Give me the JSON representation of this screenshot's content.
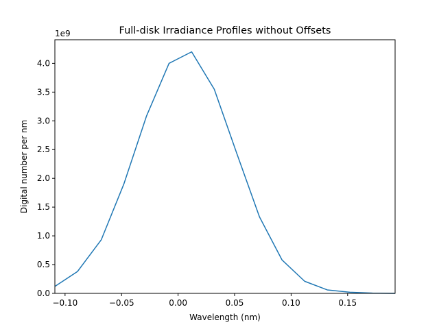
{
  "chart_data": {
    "type": "line",
    "title": "Full-disk Irradiance Profiles without Offsets",
    "xlabel": "Wavelength (nm)",
    "ylabel": "Digital number per nm",
    "y_exponent_label": "1e9",
    "xlim": [
      -0.109,
      0.192
    ],
    "ylim": [
      0,
      4.41
    ],
    "grid": false,
    "x_ticks": [
      -0.1,
      -0.05,
      0.0,
      0.05,
      0.1,
      0.15
    ],
    "x_tick_labels": [
      "−0.10",
      "−0.05",
      "0.00",
      "0.05",
      "0.10",
      "0.15"
    ],
    "y_ticks": [
      0.0,
      0.5,
      1.0,
      1.5,
      2.0,
      2.5,
      3.0,
      3.5,
      4.0
    ],
    "y_tick_labels": [
      "0.0",
      "0.5",
      "1.0",
      "1.5",
      "2.0",
      "2.5",
      "3.0",
      "3.5",
      "4.0"
    ],
    "series": [
      {
        "color": "#1f77b4",
        "x": [
          -0.109,
          -0.089,
          -0.068,
          -0.048,
          -0.028,
          -0.008,
          0.012,
          0.032,
          0.052,
          0.072,
          0.092,
          0.112,
          0.132,
          0.152,
          0.172,
          0.192
        ],
        "y": [
          0.12,
          0.38,
          0.93,
          1.9,
          3.08,
          4.0,
          4.2,
          3.55,
          2.43,
          1.33,
          0.58,
          0.21,
          0.06,
          0.02,
          0.005,
          0.0
        ]
      }
    ]
  }
}
